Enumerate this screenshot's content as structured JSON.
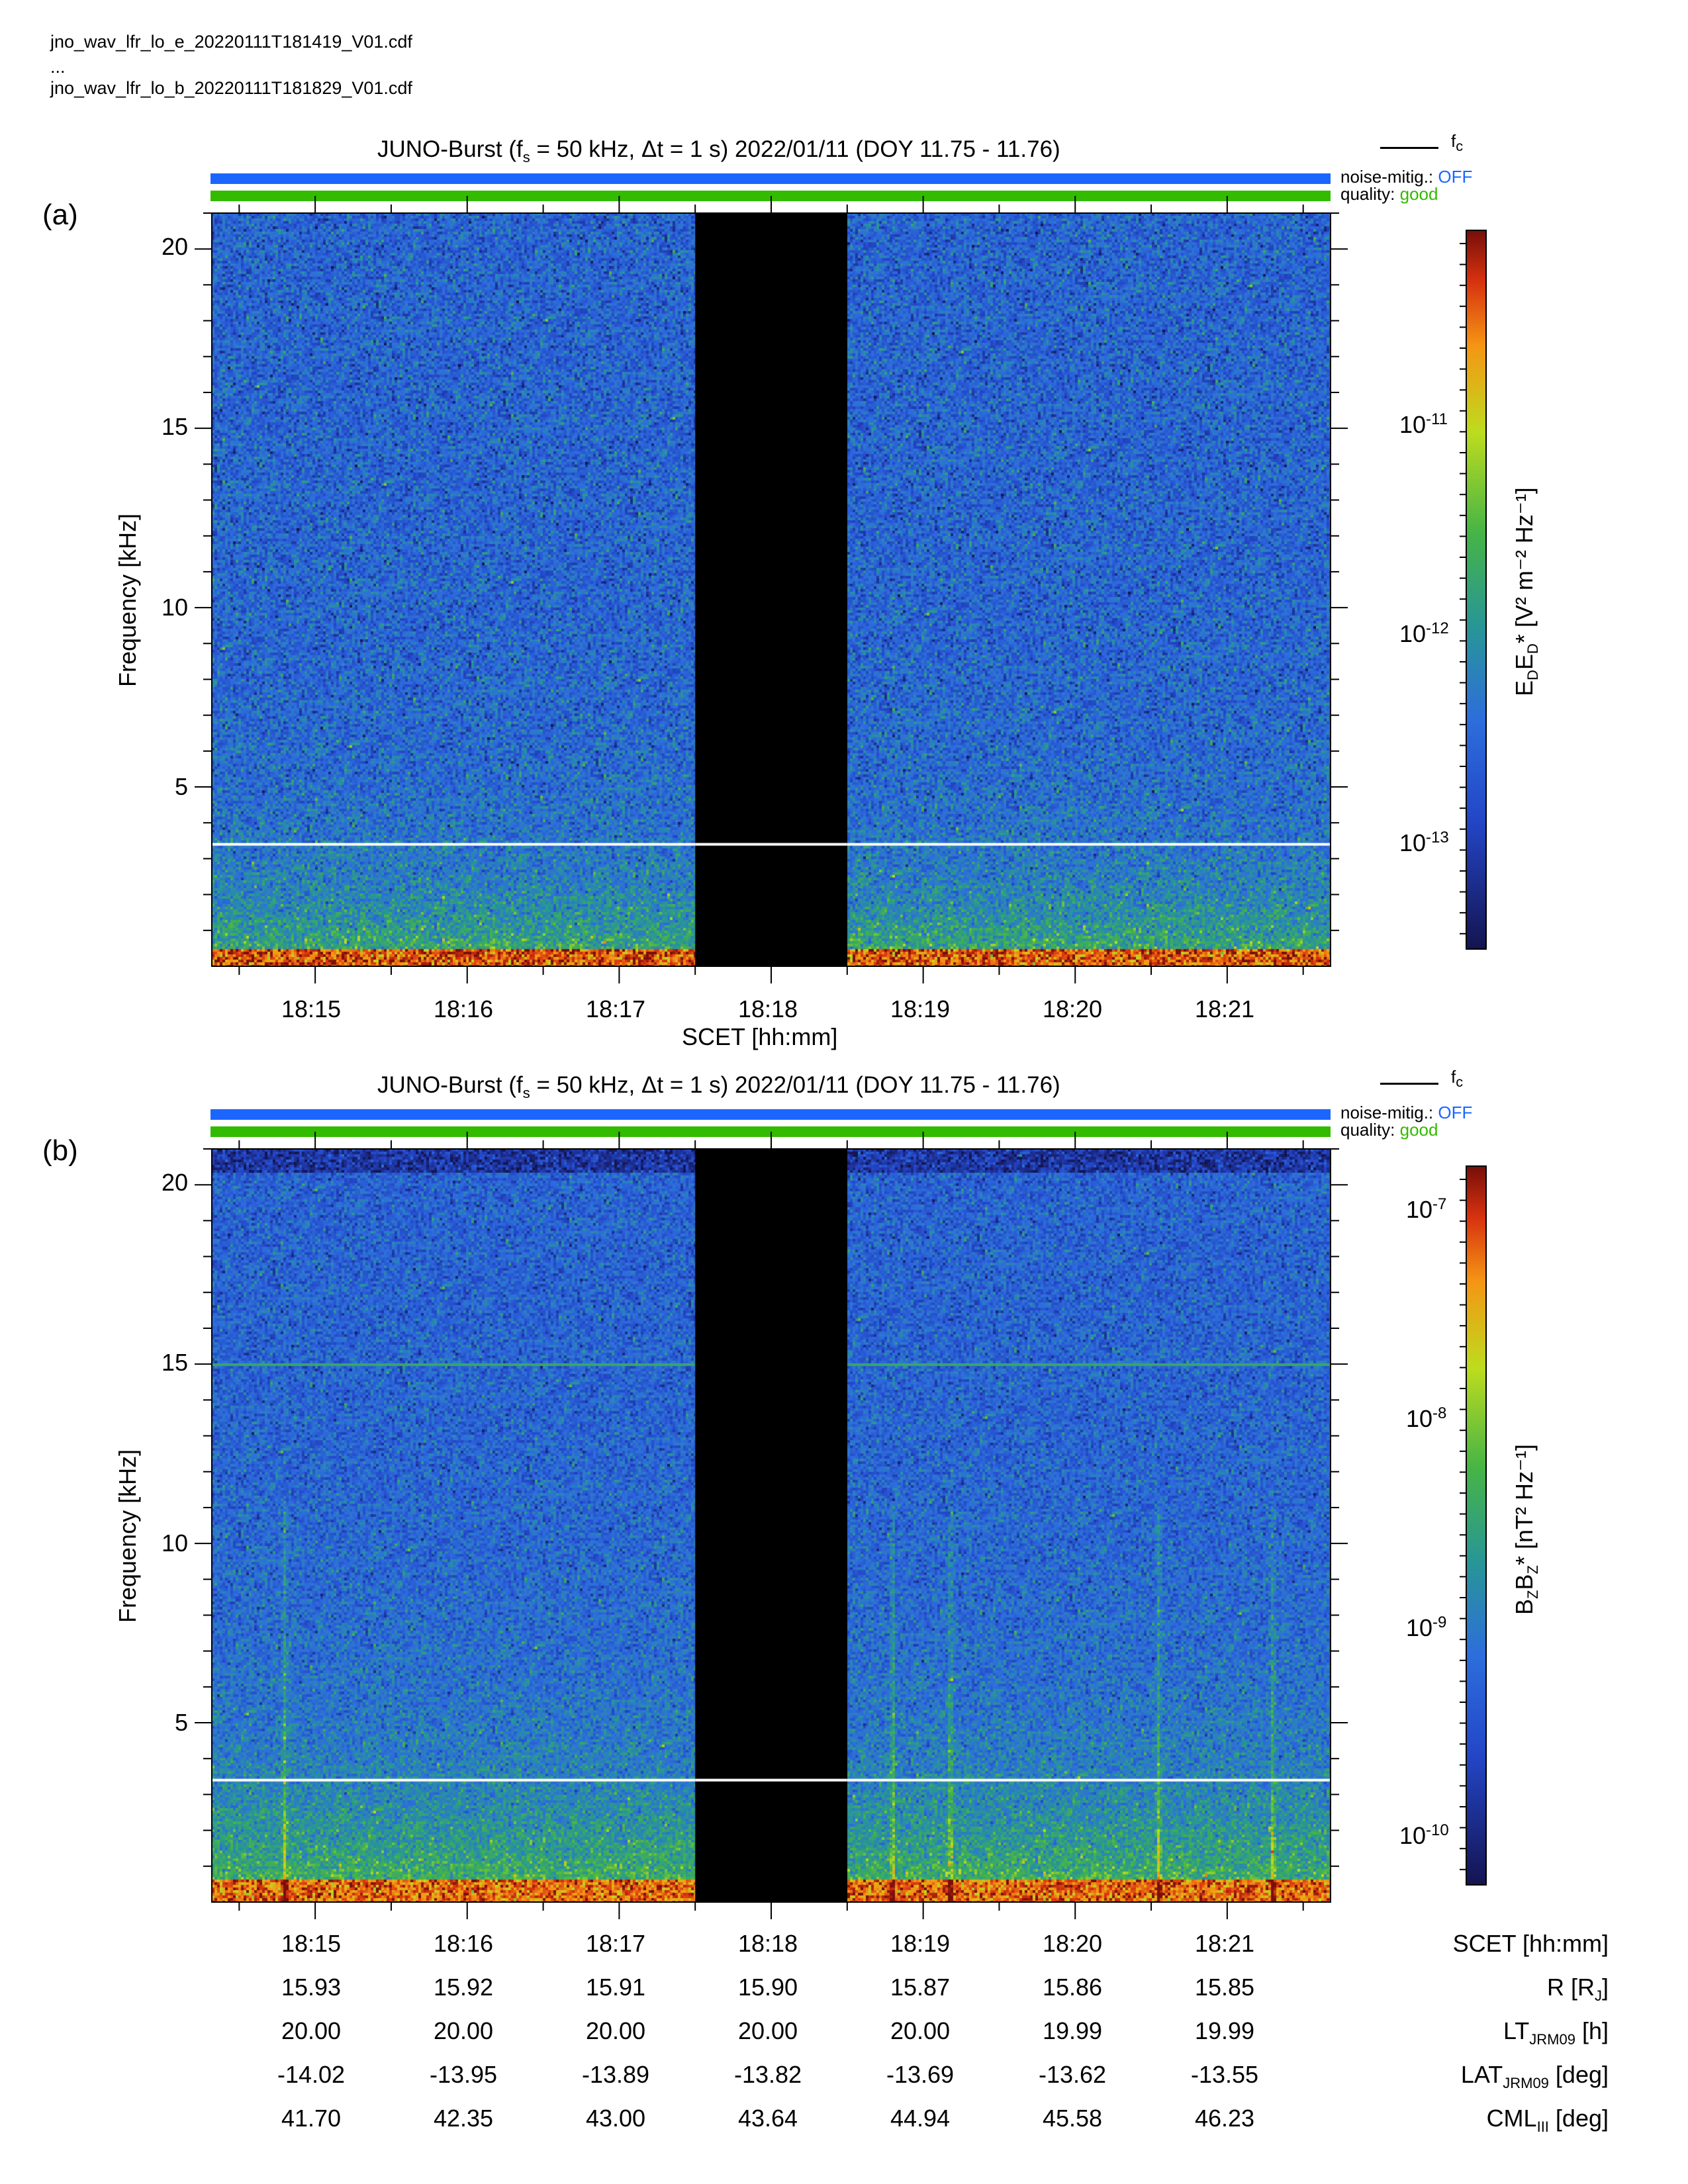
{
  "files": {
    "line1": "jno_wav_lfr_lo_e_20220111T181419_V01.cdf",
    "line2": "...",
    "line3": "jno_wav_lfr_lo_b_20220111T181829_V01.cdf"
  },
  "colors": {
    "noise_bar": "#1a66ff",
    "quality_bar": "#33bb00",
    "noise_status": "#1a66ff",
    "quality_status": "#33bb00",
    "fc_line": "#ffffff",
    "gap": "#000000"
  },
  "legend": {
    "fc": "f",
    "fc_sub": "c",
    "noise_label": "noise-mitig.:",
    "noise_status": "OFF",
    "quality_label": "quality:",
    "quality_status": "good"
  },
  "panels": [
    {
      "label": "(a)",
      "title": {
        "pre": "JUNO-Burst (f",
        "sub": "s",
        "post": " = 50 kHz, Δt = 1 s)  2022/01/11 (DOY 11.75 - 11.76)"
      },
      "colorbar": {
        "label_pre": "E",
        "label_sub1": "D",
        "label_mid": "E",
        "label_sub2": "D",
        "label_post": "* [V² m⁻² Hz⁻¹]",
        "ticks": [
          {
            "base": "10",
            "exp": "-11"
          },
          {
            "base": "10",
            "exp": "-12"
          },
          {
            "base": "10",
            "exp": "-13"
          }
        ]
      }
    },
    {
      "label": "(b)",
      "title": {
        "pre": "JUNO-Burst (f",
        "sub": "s",
        "post": " = 50 kHz, Δt = 1 s)  2022/01/11 (DOY 11.75 - 11.76)"
      },
      "colorbar": {
        "label_pre": "B",
        "label_sub1": "Z",
        "label_mid": "B",
        "label_sub2": "Z",
        "label_post": "* [nT² Hz⁻¹]",
        "ticks": [
          {
            "base": "10",
            "exp": "-7"
          },
          {
            "base": "10",
            "exp": "-8"
          },
          {
            "base": "10",
            "exp": "-9"
          },
          {
            "base": "10",
            "exp": "-10"
          }
        ]
      }
    }
  ],
  "chart_data": [
    {
      "type": "heatmap",
      "panel": "a",
      "title": "JUNO-Burst (fs = 50 kHz, Δt = 1 s)  2022/01/11 (DOY 11.75 - 11.76)",
      "xlabel": "SCET [hh:mm]",
      "ylabel": "Frequency [kHz]",
      "x_ticks": [
        "18:15",
        "18:16",
        "18:17",
        "18:18",
        "18:19",
        "18:20",
        "18:21"
      ],
      "xlim_minutes": [
        14.32,
        21.68
      ],
      "y_ticks": [
        "5",
        "10",
        "15",
        "20"
      ],
      "ylim_khz": [
        0,
        21
      ],
      "colorbar_label": "EDED* [V2 m-2 Hz-1]",
      "colorbar_scale": "log",
      "colorbar_ticks": [
        "10-11",
        "10-12",
        "10-13"
      ],
      "fc_khz": 3.4,
      "data_gap_minutes": [
        17.5,
        18.5
      ]
    },
    {
      "type": "heatmap",
      "panel": "b",
      "title": "JUNO-Burst (fs = 50 kHz, Δt = 1 s)  2022/01/11 (DOY 11.75 - 11.76)",
      "xlabel": "SCET [hh:mm]",
      "ylabel": "Frequency [kHz]",
      "x_ticks": [
        "18:15",
        "18:16",
        "18:17",
        "18:18",
        "18:19",
        "18:20",
        "18:21"
      ],
      "xlim_minutes": [
        14.32,
        21.68
      ],
      "y_ticks": [
        "5",
        "10",
        "15",
        "20"
      ],
      "ylim_khz": [
        0,
        21
      ],
      "colorbar_label": "BZBZ* [nT2 Hz-1]",
      "colorbar_scale": "log",
      "colorbar_ticks": [
        "10-7",
        "10-8",
        "10-9",
        "10-10"
      ],
      "fc_khz": 3.4,
      "data_gap_minutes": [
        17.5,
        18.5
      ],
      "interference_line_khz": 15.0,
      "burst_minutes": [
        14.8,
        18.8,
        19.18,
        20.55,
        21.3
      ]
    }
  ],
  "ephemeris": {
    "rows": [
      {
        "name_pre": "SCET [hh:mm]",
        "name_sub": "",
        "name_post": "",
        "values": [
          "18:15",
          "18:16",
          "18:17",
          "18:18",
          "18:19",
          "18:20",
          "18:21"
        ]
      },
      {
        "name_pre": "R [R",
        "name_sub": "J",
        "name_post": "]",
        "values": [
          "15.93",
          "15.92",
          "15.91",
          "15.90",
          "15.87",
          "15.86",
          "15.85"
        ]
      },
      {
        "name_pre": "LT",
        "name_sub": "JRM09",
        "name_post": " [h]",
        "values": [
          "20.00",
          "20.00",
          "20.00",
          "20.00",
          "20.00",
          "19.99",
          "19.99"
        ]
      },
      {
        "name_pre": "LAT",
        "name_sub": "JRM09",
        "name_post": " [deg]",
        "values": [
          "-14.02",
          "-13.95",
          "-13.89",
          "-13.82",
          "-13.69",
          "-13.62",
          "-13.55"
        ]
      },
      {
        "name_pre": "CML",
        "name_sub": "III",
        "name_post": " [deg]",
        "values": [
          "41.70",
          "42.35",
          "43.00",
          "43.64",
          "44.94",
          "45.58",
          "46.23"
        ]
      }
    ]
  }
}
